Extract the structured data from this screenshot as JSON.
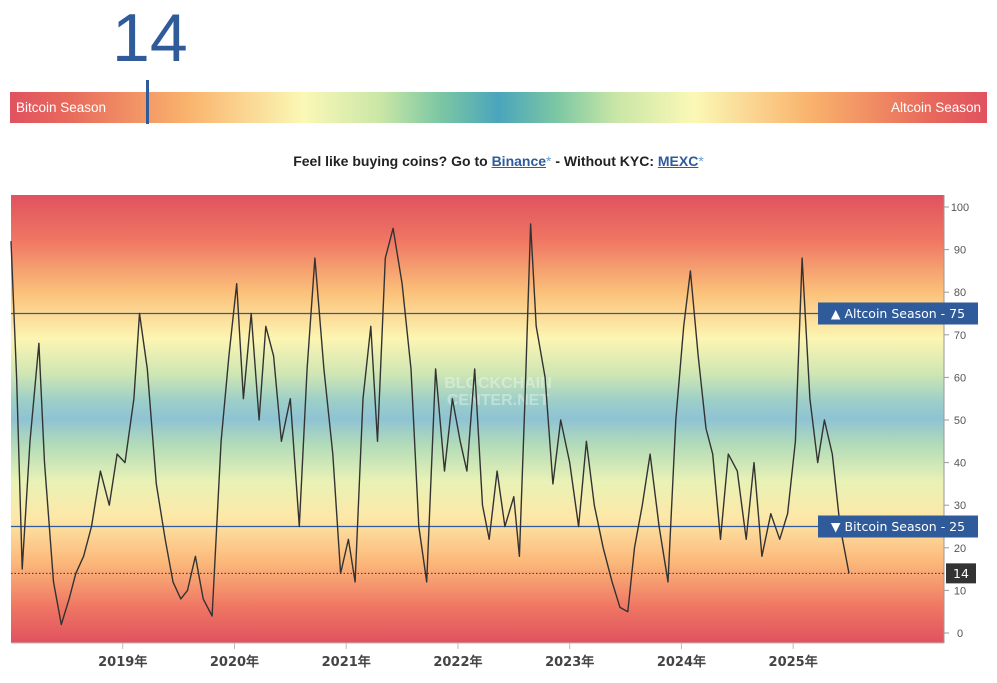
{
  "header": {
    "current_value": "14",
    "left_label": "Bitcoin Season",
    "right_label": "Altcoin Season",
    "indicator_value": 14
  },
  "promo": {
    "prefix": "Feel like buying coins? Go to ",
    "link1": "Binance",
    "asterisk1": "*",
    "middle": " - Without KYC: ",
    "link2": "MEXC",
    "asterisk2": "*"
  },
  "colors": {
    "accent": "#2f5b9a",
    "line": "#333333",
    "current_badge": "#333333"
  },
  "chart_data": {
    "type": "line",
    "title": "",
    "watermark": [
      "BLOCKCHAIN",
      "CENTER.NET"
    ],
    "xlabel": "",
    "ylabel": "",
    "ylim": [
      0,
      100
    ],
    "yticks": [
      0,
      10,
      20,
      30,
      40,
      50,
      60,
      70,
      80,
      90,
      100
    ],
    "xticks": [
      "2019年",
      "2020年",
      "2021年",
      "2022年",
      "2023年",
      "2024年",
      "2025年"
    ],
    "xtick_years": [
      2019,
      2020,
      2021,
      2022,
      2023,
      2024,
      2025
    ],
    "xlim_years": [
      2018.0,
      2026.35
    ],
    "legend": "none",
    "reference_lines": [
      {
        "value": 75,
        "label": "▲ Altcoin Season - 75"
      },
      {
        "value": 25,
        "label": "▼ Bitcoin Season - 25"
      }
    ],
    "current": {
      "value": 14,
      "label": "14"
    },
    "series": [
      {
        "x": [
          2018.0,
          2018.05,
          2018.1,
          2018.17,
          2018.25,
          2018.3,
          2018.38,
          2018.45,
          2018.52,
          2018.58,
          2018.65,
          2018.72,
          2018.8,
          2018.88,
          2018.95,
          2019.02,
          2019.1,
          2019.15,
          2019.22,
          2019.3,
          2019.38,
          2019.45,
          2019.52,
          2019.58,
          2019.65,
          2019.72,
          2019.8,
          2019.88,
          2019.95,
          2020.02,
          2020.08,
          2020.15,
          2020.22,
          2020.28,
          2020.35,
          2020.42,
          2020.5,
          2020.58,
          2020.65,
          2020.72,
          2020.8,
          2020.88,
          2020.95,
          2021.02,
          2021.08,
          2021.15,
          2021.22,
          2021.28,
          2021.35,
          2021.42,
          2021.5,
          2021.58,
          2021.65,
          2021.72,
          2021.8,
          2021.88,
          2021.95,
          2022.02,
          2022.08,
          2022.15,
          2022.22,
          2022.28,
          2022.35,
          2022.42,
          2022.5,
          2022.55,
          2022.6,
          2022.65,
          2022.7,
          2022.78,
          2022.85,
          2022.92,
          2023.0,
          2023.08,
          2023.15,
          2023.22,
          2023.3,
          2023.38,
          2023.45,
          2023.52,
          2023.58,
          2023.65,
          2023.72,
          2023.8,
          2023.88,
          2023.95,
          2024.02,
          2024.08,
          2024.15,
          2024.22,
          2024.28,
          2024.35,
          2024.42,
          2024.5,
          2024.58,
          2024.65,
          2024.72,
          2024.8,
          2024.88,
          2024.95,
          2025.02,
          2025.08,
          2025.15,
          2025.22,
          2025.28,
          2025.35,
          2025.42,
          2025.5
        ],
        "y": [
          92,
          60,
          15,
          45,
          68,
          40,
          12,
          2,
          8,
          14,
          18,
          25,
          38,
          30,
          42,
          40,
          55,
          75,
          62,
          35,
          22,
          12,
          8,
          10,
          18,
          8,
          4,
          45,
          65,
          82,
          55,
          75,
          50,
          72,
          65,
          45,
          55,
          25,
          62,
          88,
          62,
          42,
          14,
          22,
          12,
          55,
          72,
          45,
          88,
          95,
          82,
          62,
          25,
          12,
          62,
          38,
          55,
          45,
          38,
          62,
          30,
          22,
          38,
          25,
          32,
          18,
          55,
          96,
          72,
          60,
          35,
          50,
          40,
          25,
          45,
          30,
          20,
          12,
          6,
          5,
          20,
          30,
          42,
          25,
          12,
          50,
          72,
          85,
          65,
          48,
          42,
          22,
          42,
          38,
          22,
          40,
          18,
          28,
          22,
          28,
          45,
          88,
          55,
          40,
          50,
          42,
          25,
          14
        ]
      }
    ]
  }
}
